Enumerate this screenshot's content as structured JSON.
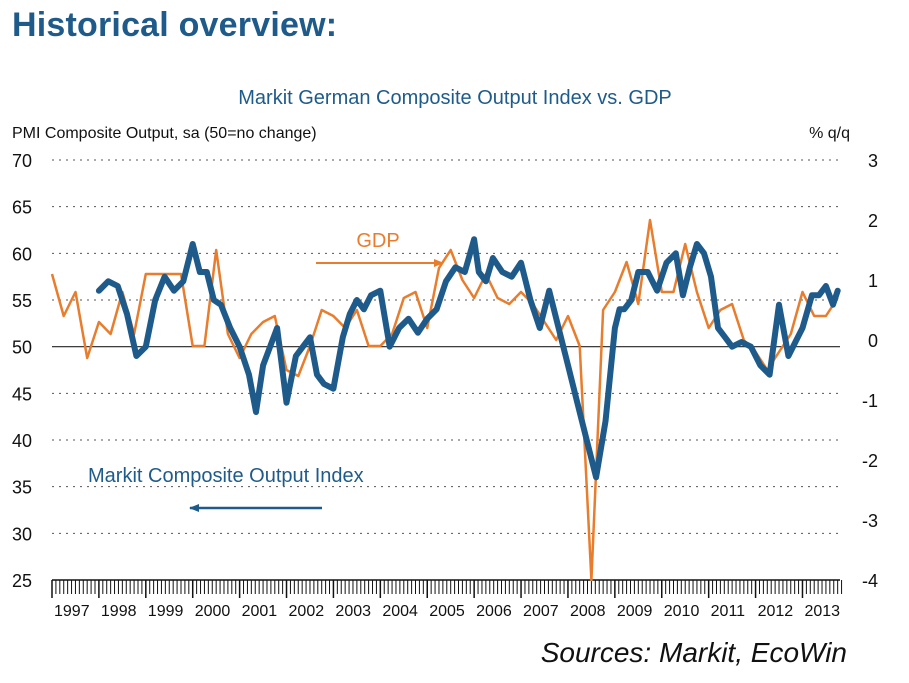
{
  "page": {
    "heading": "Historical overview:",
    "footnote": "Sources: Markit, EcoWin"
  },
  "chart_data": {
    "type": "line",
    "title": "Markit German Composite Output Index vs. GDP",
    "ylabel_left": "PMI Composite Output, sa (50=no change)",
    "ylabel_right": "% q/q",
    "ylim_left": [
      25,
      70
    ],
    "ylim_right": [
      -4,
      3
    ],
    "yticks_left": [
      "70",
      "65",
      "60",
      "55",
      "50",
      "45",
      "40",
      "35",
      "30",
      "25"
    ],
    "yticks_right": [
      "3",
      "2",
      "1",
      "0",
      "-1",
      "-2",
      "-3",
      "-4"
    ],
    "xlim": [
      1997.0,
      2013.8
    ],
    "x_tick_labels": [
      "1997",
      "1998",
      "1999",
      "2000",
      "2001",
      "2002",
      "2003",
      "2004",
      "2005",
      "2006",
      "2007",
      "2008",
      "2009",
      "2010",
      "2011",
      "2012",
      "2013"
    ],
    "grid": "horizontal-dotted",
    "colors": {
      "pmi": "#1f5b8a",
      "gdp": "#e87d2d",
      "title": "#1f5b8a",
      "heading": "#1f5b8a"
    },
    "series": [
      {
        "name": "Markit Composite Output Index",
        "axis": "left",
        "x": [
          1998.0,
          1998.2,
          1998.4,
          1998.6,
          1998.8,
          1999.0,
          1999.2,
          1999.4,
          1999.6,
          1999.8,
          2000.0,
          2000.15,
          2000.3,
          2000.45,
          2000.6,
          2000.8,
          2001.0,
          2001.2,
          2001.35,
          2001.5,
          2001.65,
          2001.8,
          2002.0,
          2002.2,
          2002.35,
          2002.5,
          2002.65,
          2002.8,
          2003.0,
          2003.2,
          2003.35,
          2003.5,
          2003.65,
          2003.8,
          2004.0,
          2004.2,
          2004.4,
          2004.6,
          2004.8,
          2005.0,
          2005.2,
          2005.4,
          2005.6,
          2005.8,
          2006.0,
          2006.1,
          2006.25,
          2006.4,
          2006.6,
          2006.8,
          2007.0,
          2007.2,
          2007.4,
          2007.6,
          2007.8,
          2008.0,
          2008.2,
          2008.4,
          2008.6,
          2008.8,
          2008.9,
          2009.0,
          2009.1,
          2009.2,
          2009.35,
          2009.5,
          2009.7,
          2009.9,
          2010.1,
          2010.3,
          2010.45,
          2010.6,
          2010.75,
          2010.9,
          2011.05,
          2011.2,
          2011.35,
          2011.5,
          2011.7,
          2011.9,
          2012.1,
          2012.3,
          2012.5,
          2012.7,
          2012.85,
          2013.0,
          2013.2,
          2013.35,
          2013.5,
          2013.65,
          2013.75
        ],
        "values": [
          56.0,
          57.0,
          56.5,
          53.5,
          49.0,
          50.0,
          55.0,
          57.5,
          56.0,
          57.0,
          61.0,
          58.0,
          58.0,
          55.0,
          54.5,
          52.0,
          50.0,
          47.0,
          43.0,
          48.0,
          50.0,
          52.0,
          44.0,
          49.0,
          50.0,
          51.0,
          47.0,
          46.0,
          45.5,
          51.0,
          53.5,
          55.0,
          54.0,
          55.5,
          56.0,
          50.0,
          52.0,
          53.0,
          51.5,
          53.0,
          54.0,
          57.0,
          58.5,
          58.0,
          61.5,
          58.0,
          57.0,
          59.5,
          58.0,
          57.5,
          59.0,
          55.0,
          52.0,
          56.0,
          52.0,
          48.0,
          44.0,
          40.0,
          36.0,
          42.0,
          47.0,
          52.0,
          54.0,
          54.0,
          55.0,
          58.0,
          58.0,
          56.0,
          59.0,
          60.0,
          55.5,
          58.5,
          61.0,
          60.0,
          57.5,
          52.0,
          51.0,
          50.0,
          50.5,
          50.0,
          48.0,
          47.0,
          54.5,
          49.0,
          50.5,
          52.0,
          55.5,
          55.5,
          56.5,
          54.5,
          56.0
        ]
      },
      {
        "name": "GDP",
        "axis": "right",
        "x": [
          1997.0,
          1997.25,
          1997.5,
          1997.75,
          1998.0,
          1998.25,
          1998.5,
          1998.75,
          1999.0,
          1999.25,
          1999.5,
          1999.75,
          2000.0,
          2000.25,
          2000.5,
          2000.75,
          2001.0,
          2001.25,
          2001.5,
          2001.75,
          2002.0,
          2002.25,
          2002.5,
          2002.75,
          2003.0,
          2003.25,
          2003.5,
          2003.75,
          2004.0,
          2004.25,
          2004.5,
          2004.75,
          2005.0,
          2005.25,
          2005.5,
          2005.75,
          2006.0,
          2006.25,
          2006.5,
          2006.75,
          2007.0,
          2007.25,
          2007.5,
          2007.75,
          2008.0,
          2008.25,
          2008.5,
          2008.75,
          2009.0,
          2009.25,
          2009.5,
          2009.75,
          2010.0,
          2010.25,
          2010.5,
          2010.75,
          2011.0,
          2011.25,
          2011.5,
          2011.75,
          2012.0,
          2012.25,
          2012.5,
          2012.75,
          2013.0,
          2013.25,
          2013.5,
          2013.75
        ],
        "values": [
          1.1,
          0.4,
          0.8,
          -0.3,
          0.3,
          0.1,
          0.8,
          0.1,
          1.1,
          1.1,
          1.1,
          1.1,
          -0.1,
          -0.1,
          1.5,
          0.1,
          -0.3,
          0.1,
          0.3,
          0.4,
          -0.5,
          -0.6,
          -0.1,
          0.5,
          0.4,
          0.2,
          0.5,
          -0.1,
          -0.1,
          0.1,
          0.7,
          0.8,
          0.2,
          1.2,
          1.5,
          1.0,
          0.7,
          1.1,
          0.7,
          0.6,
          0.8,
          0.6,
          0.3,
          0.0,
          0.4,
          -0.1,
          -4.0,
          0.5,
          0.8,
          1.3,
          0.6,
          2.0,
          0.8,
          0.8,
          1.6,
          0.8,
          0.2,
          0.5,
          0.6,
          0.0,
          -0.2,
          -0.5,
          -0.2,
          0.1,
          0.8,
          0.4,
          0.4,
          0.7
        ]
      }
    ],
    "annotations": [
      {
        "text": "GDP",
        "series": "GDP",
        "arrow": "right"
      },
      {
        "text": "Markit Composite Output Index",
        "series": "Markit Composite Output Index",
        "arrow": "left"
      }
    ]
  }
}
